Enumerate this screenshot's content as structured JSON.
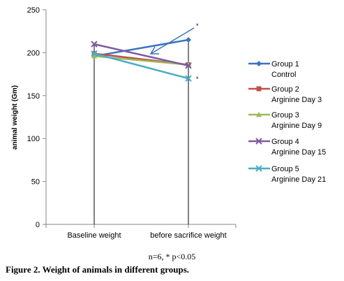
{
  "chart_data": {
    "type": "line",
    "title": "",
    "xlabel": "",
    "ylabel": "animal weight (Gm)",
    "categories": [
      "Baseline weight",
      "before sacrifice weight"
    ],
    "ylim": [
      0,
      250
    ],
    "yticks": [
      0,
      50,
      100,
      150,
      200,
      250
    ],
    "grid": false,
    "legend_position": "right",
    "series": [
      {
        "name": "Group 1",
        "name_line2": "Control",
        "values": [
          196,
          215
        ],
        "color": "#3a73c0",
        "marker": "diamond"
      },
      {
        "name": "Group 2",
        "name_line2": "Arginine Day 3",
        "values": [
          199,
          186
        ],
        "color": "#c0504d",
        "marker": "square"
      },
      {
        "name": "Group 3",
        "name_line2": "Arginine Day 9",
        "values": [
          196,
          186
        ],
        "color": "#9bbb59",
        "marker": "triangle"
      },
      {
        "name": "Group 4",
        "name_line2": "Arginine Day 15",
        "values": [
          210,
          185
        ],
        "color": "#7f5ca0",
        "marker": "x"
      },
      {
        "name": "Group 5",
        "name_line2": "Arginine Day 21",
        "values": [
          199,
          170
        ],
        "color": "#4bacc6",
        "marker": "x"
      }
    ],
    "annotations": [
      "*",
      "*"
    ]
  },
  "footnote": "n=6, * p<0.05",
  "figure_caption": {
    "label": "Figure 2.",
    "text": " Weight of animals in different groups."
  }
}
